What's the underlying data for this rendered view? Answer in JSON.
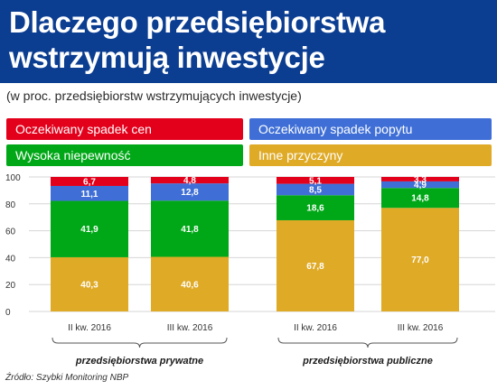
{
  "header": {
    "title_line1": "Dlaczego przedsiębiorstwa",
    "title_line2": "wstrzymują inwestycje",
    "subtitle": "(w proc. przedsiębiorstw wstrzymujących inwestycje)"
  },
  "legend": [
    {
      "label": "Oczekiwany spadek cen",
      "color": "#e3001b"
    },
    {
      "label": "Oczekiwany spadek popytu",
      "color": "#3f6fd6"
    },
    {
      "label": "Wysoka niepewność",
      "color": "#00a817"
    },
    {
      "label": "Inne przyczyny",
      "color": "#dfaa26"
    }
  ],
  "chart_data": {
    "type": "bar",
    "stacked": true,
    "categories": [
      "II kw. 2016",
      "III kw. 2016",
      "II kw. 2016",
      "III kw. 2016"
    ],
    "groups": [
      {
        "label": "przedsiębiorstwa prywatne",
        "categories": [
          0,
          1
        ]
      },
      {
        "label": "przedsiębiorstwa publiczne",
        "categories": [
          2,
          3
        ]
      }
    ],
    "series": [
      {
        "name": "Inne przyczyny",
        "color": "#dfaa26",
        "values": [
          40.3,
          40.6,
          67.8,
          77.0
        ],
        "labels": [
          "40,3",
          "40,6",
          "67,8",
          "77,0"
        ]
      },
      {
        "name": "Wysoka niepewność",
        "color": "#00a817",
        "values": [
          41.9,
          41.8,
          18.6,
          14.8
        ],
        "labels": [
          "41,9",
          "41,8",
          "18,6",
          "14,8"
        ]
      },
      {
        "name": "Oczekiwany spadek popytu",
        "color": "#3f6fd6",
        "values": [
          11.1,
          12.8,
          8.5,
          4.9
        ],
        "labels": [
          "11,1",
          "12,8",
          "8,5",
          "4,9"
        ]
      },
      {
        "name": "Oczekiwany spadek cen",
        "color": "#e3001b",
        "values": [
          6.7,
          4.8,
          5.1,
          3.3
        ],
        "labels": [
          "6,7",
          "4,8",
          "5,1",
          "3,3"
        ]
      }
    ],
    "ylim": [
      0,
      100
    ],
    "yticks": [
      0,
      20,
      40,
      60,
      80,
      100
    ],
    "grid": true
  },
  "source": "Źródło: Szybki Monitoring NBP"
}
